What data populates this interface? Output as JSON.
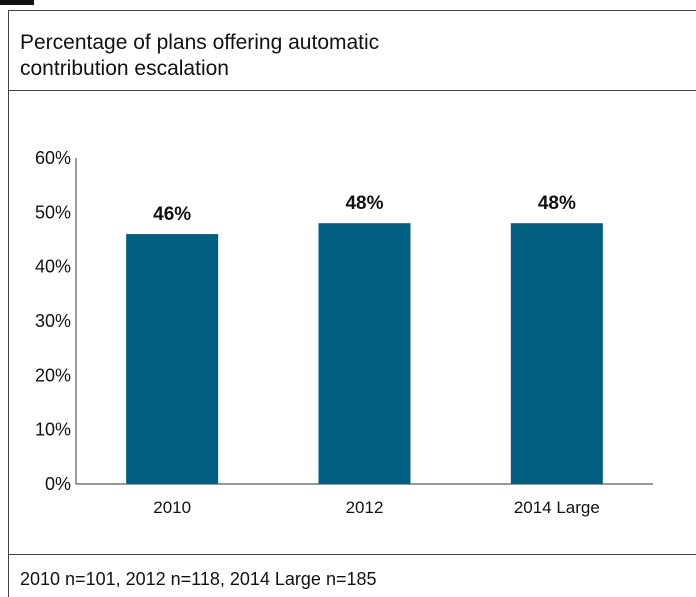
{
  "header": {
    "title_line1": "Percentage of plans offering automatic",
    "title_line2": "contribution escalation"
  },
  "footer": {
    "note": "2010 n=101, 2012 n=118, 2014 Large n=185"
  },
  "colors": {
    "bar": "#005f80",
    "axis": "#333333"
  },
  "chart_data": {
    "type": "bar",
    "title": "Percentage of plans offering automatic contribution escalation",
    "xlabel": "",
    "ylabel": "",
    "categories": [
      "2010",
      "2012",
      "2014 Large"
    ],
    "values": [
      46,
      48,
      48
    ],
    "value_labels": [
      "46%",
      "48%",
      "48%"
    ],
    "ylim": [
      0,
      60
    ],
    "yticks": [
      0,
      10,
      20,
      30,
      40,
      50,
      60
    ],
    "ytick_labels": [
      "0%",
      "10%",
      "20%",
      "30%",
      "40%",
      "50%",
      "60%"
    ],
    "grid": false,
    "legend": "none"
  }
}
